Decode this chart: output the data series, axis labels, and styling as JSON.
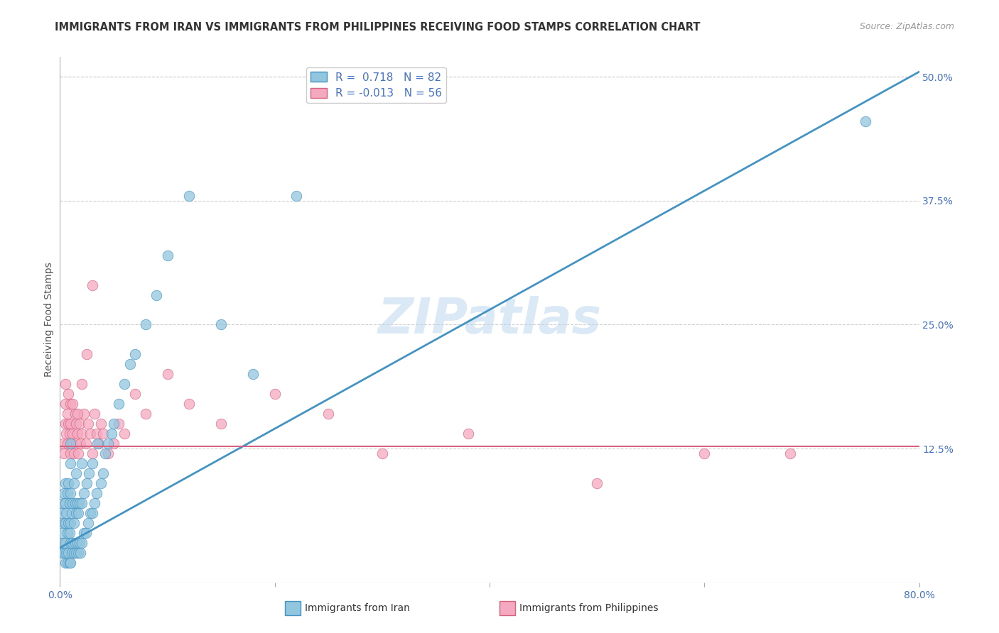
{
  "title": "IMMIGRANTS FROM IRAN VS IMMIGRANTS FROM PHILIPPINES RECEIVING FOOD STAMPS CORRELATION CHART",
  "source": "Source: ZipAtlas.com",
  "ylabel": "Receiving Food Stamps",
  "watermark": "ZIPatlas",
  "xlim": [
    0.0,
    0.8
  ],
  "ylim": [
    -0.01,
    0.52
  ],
  "yticks_right": [
    0.125,
    0.25,
    0.375,
    0.5
  ],
  "ytick_labels_right": [
    "12.5%",
    "25.0%",
    "37.5%",
    "50.0%"
  ],
  "iran_color": "#92c5de",
  "iran_color_edge": "#4393c3",
  "philippines_color": "#f4a9c0",
  "philippines_color_edge": "#d6607e",
  "iran_R": 0.718,
  "iran_N": 82,
  "philippines_R": -0.013,
  "philippines_N": 56,
  "iran_trend": [
    0.0,
    0.025,
    0.8,
    0.505
  ],
  "philippines_trend_y": 0.127,
  "legend_label_iran": "Immigrants from Iran",
  "legend_label_philippines": "Immigrants from Philippines",
  "title_fontsize": 10.5,
  "source_fontsize": 9,
  "axis_label_fontsize": 10,
  "tick_fontsize": 10,
  "legend_fontsize": 10,
  "watermark_fontsize": 50,
  "background_color": "#ffffff",
  "grid_color": "#d0d0d0",
  "iran_scatter_x": [
    0.002,
    0.002,
    0.002,
    0.003,
    0.003,
    0.004,
    0.004,
    0.004,
    0.005,
    0.005,
    0.005,
    0.005,
    0.005,
    0.006,
    0.006,
    0.007,
    0.007,
    0.007,
    0.008,
    0.008,
    0.008,
    0.009,
    0.009,
    0.009,
    0.01,
    0.01,
    0.01,
    0.01,
    0.01,
    0.01,
    0.011,
    0.011,
    0.012,
    0.012,
    0.013,
    0.013,
    0.013,
    0.014,
    0.014,
    0.015,
    0.015,
    0.015,
    0.016,
    0.016,
    0.017,
    0.017,
    0.018,
    0.018,
    0.019,
    0.02,
    0.02,
    0.02,
    0.022,
    0.022,
    0.024,
    0.025,
    0.026,
    0.027,
    0.028,
    0.03,
    0.03,
    0.032,
    0.034,
    0.035,
    0.038,
    0.04,
    0.042,
    0.045,
    0.048,
    0.05,
    0.055,
    0.06,
    0.065,
    0.07,
    0.08,
    0.09,
    0.1,
    0.12,
    0.15,
    0.18,
    0.22,
    0.75
  ],
  "iran_scatter_y": [
    0.02,
    0.04,
    0.06,
    0.03,
    0.07,
    0.02,
    0.05,
    0.08,
    0.01,
    0.03,
    0.05,
    0.07,
    0.09,
    0.02,
    0.06,
    0.01,
    0.04,
    0.08,
    0.02,
    0.05,
    0.09,
    0.01,
    0.04,
    0.07,
    0.01,
    0.03,
    0.05,
    0.08,
    0.11,
    0.13,
    0.02,
    0.06,
    0.03,
    0.07,
    0.02,
    0.05,
    0.09,
    0.03,
    0.07,
    0.02,
    0.06,
    0.1,
    0.03,
    0.07,
    0.02,
    0.06,
    0.03,
    0.07,
    0.02,
    0.03,
    0.07,
    0.11,
    0.04,
    0.08,
    0.04,
    0.09,
    0.05,
    0.1,
    0.06,
    0.06,
    0.11,
    0.07,
    0.08,
    0.13,
    0.09,
    0.1,
    0.12,
    0.13,
    0.14,
    0.15,
    0.17,
    0.19,
    0.21,
    0.22,
    0.25,
    0.28,
    0.32,
    0.38,
    0.25,
    0.2,
    0.38,
    0.455
  ],
  "philippines_scatter_x": [
    0.003,
    0.004,
    0.005,
    0.005,
    0.006,
    0.007,
    0.007,
    0.008,
    0.009,
    0.01,
    0.01,
    0.01,
    0.011,
    0.012,
    0.013,
    0.014,
    0.015,
    0.015,
    0.016,
    0.017,
    0.018,
    0.019,
    0.02,
    0.022,
    0.024,
    0.026,
    0.028,
    0.03,
    0.032,
    0.034,
    0.036,
    0.038,
    0.04,
    0.045,
    0.05,
    0.055,
    0.06,
    0.07,
    0.08,
    0.1,
    0.12,
    0.15,
    0.2,
    0.25,
    0.3,
    0.38,
    0.5,
    0.6,
    0.005,
    0.008,
    0.012,
    0.016,
    0.02,
    0.025,
    0.03,
    0.68
  ],
  "philippines_scatter_y": [
    0.13,
    0.12,
    0.15,
    0.17,
    0.14,
    0.13,
    0.16,
    0.15,
    0.14,
    0.12,
    0.15,
    0.17,
    0.13,
    0.14,
    0.12,
    0.16,
    0.13,
    0.15,
    0.14,
    0.12,
    0.15,
    0.13,
    0.14,
    0.16,
    0.13,
    0.15,
    0.14,
    0.12,
    0.16,
    0.14,
    0.13,
    0.15,
    0.14,
    0.12,
    0.13,
    0.15,
    0.14,
    0.18,
    0.16,
    0.2,
    0.17,
    0.15,
    0.18,
    0.16,
    0.12,
    0.14,
    0.09,
    0.12,
    0.19,
    0.18,
    0.17,
    0.16,
    0.19,
    0.22,
    0.29,
    0.12
  ]
}
